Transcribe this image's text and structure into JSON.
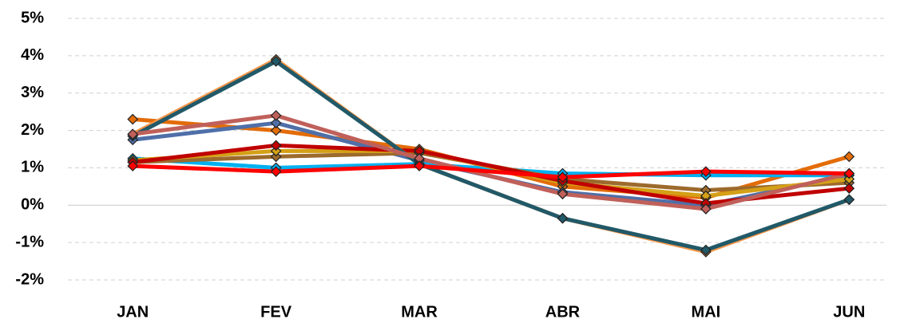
{
  "chart_data": {
    "type": "line",
    "categories": [
      "JAN",
      "FEV",
      "MAR",
      "ABR",
      "MAI",
      "JUN"
    ],
    "series": [
      {
        "color": "#e36c09",
        "values": [
          2.3,
          2.0,
          1.5,
          0.5,
          0.2,
          1.3
        ]
      },
      {
        "color": "#4f6fa8",
        "values": [
          1.75,
          2.2,
          1.2,
          0.35,
          0.0,
          0.8
        ]
      },
      {
        "color": "#00b0f0",
        "values": [
          1.25,
          1.0,
          1.1,
          0.85,
          0.8,
          0.8
        ]
      },
      {
        "color": "#9c6a2c",
        "values": [
          1.15,
          1.3,
          1.4,
          0.7,
          0.4,
          0.6
        ]
      },
      {
        "color": "#d4a017",
        "values": [
          1.2,
          1.45,
          1.45,
          0.6,
          0.25,
          0.7
        ]
      },
      {
        "color": "#c00000",
        "values": [
          1.15,
          1.6,
          1.45,
          0.65,
          0.05,
          0.45
        ]
      },
      {
        "color": "#f79646",
        "values": [
          1.9,
          3.9,
          1.1,
          -0.35,
          -1.25,
          0.15
        ]
      },
      {
        "color": "#215968",
        "values": [
          1.85,
          3.85,
          1.1,
          -0.35,
          -1.2,
          0.15
        ]
      },
      {
        "color": "#c0605a",
        "values": [
          1.9,
          2.4,
          1.25,
          0.3,
          -0.1,
          0.85
        ]
      },
      {
        "color": "#ff0000",
        "values": [
          1.05,
          0.9,
          1.05,
          0.75,
          0.9,
          0.85
        ]
      }
    ],
    "ylim": [
      -2,
      5
    ],
    "yticks": [
      {
        "value": -2,
        "label": "-2%"
      },
      {
        "value": -1,
        "label": "-1%"
      },
      {
        "value": 0,
        "label": "0%"
      },
      {
        "value": 1,
        "label": "1%"
      },
      {
        "value": 2,
        "label": "2%"
      },
      {
        "value": 3,
        "label": "3%"
      },
      {
        "value": 4,
        "label": "4%"
      },
      {
        "value": 5,
        "label": "5%"
      }
    ],
    "grid": true
  }
}
